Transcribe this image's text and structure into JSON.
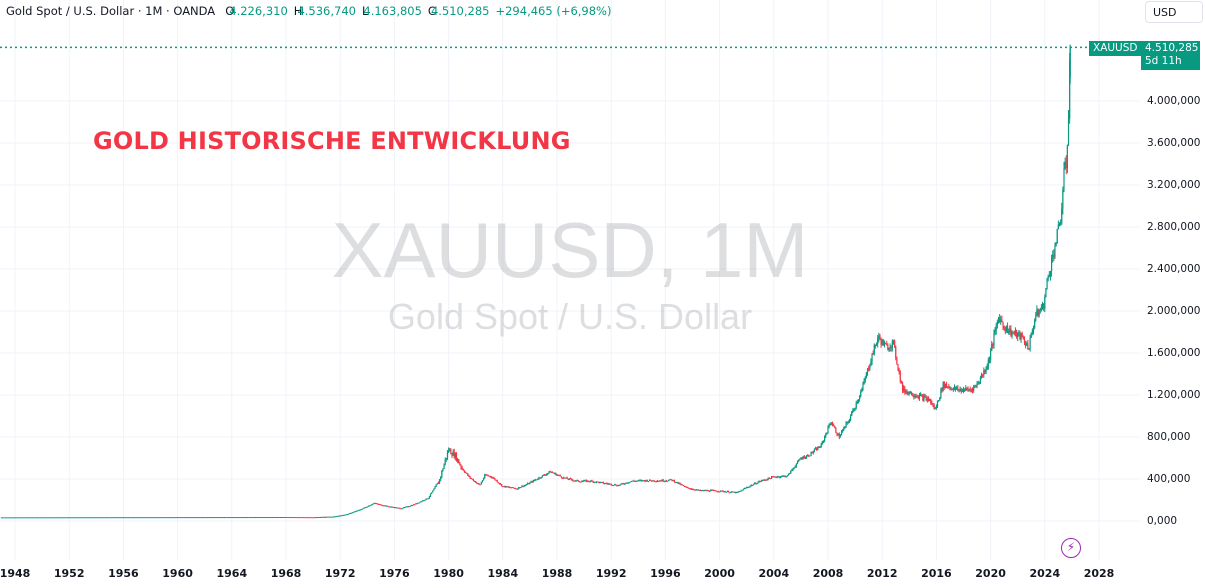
{
  "legend": {
    "symbol_name": "Gold Spot / U.S. Dollar · 1M · OANDA",
    "open_label": "O",
    "open": "4.226,310",
    "high_label": "H",
    "high": "4.536,740",
    "low_label": "L",
    "low": "4.163,805",
    "close_label": "C",
    "close": "4.510,285",
    "change": "+294,465 (+6,98%)"
  },
  "price_scale": {
    "currency": "USD",
    "symbol_tag": "XAUUSD",
    "last_price": "4.510,285",
    "countdown": "5d 11h"
  },
  "watermark": {
    "title": "XAUUSD, 1M",
    "subtitle": "Gold Spot / U.S. Dollar"
  },
  "annotation": {
    "text": "GOLD HISTORISCHE ENTWICKLUNG"
  },
  "icons": {
    "bolt": "lightning-bolt-icon"
  },
  "colors": {
    "up": "#089981",
    "down": "#f23645",
    "grid": "#f0f3fa",
    "annotation": "#f23645",
    "bolt": "#9c27b0"
  },
  "chart_data": {
    "type": "candlestick",
    "title": "XAUUSD, 1M — Gold Spot / U.S. Dollar",
    "annotation": "GOLD HISTORISCHE ENTWICKLUNG",
    "xlabel": "",
    "ylabel": "USD",
    "y_ticks": [
      "0,000",
      "400,000",
      "800,000",
      "1.200,000",
      "1.600,000",
      "2.000,000",
      "2.400,000",
      "2.800,000",
      "3.200,000",
      "3.600,000",
      "4.000,000"
    ],
    "y_tick_values": [
      0,
      400,
      800,
      1200,
      1600,
      2000,
      2400,
      2800,
      3200,
      3600,
      4000
    ],
    "x_ticks": [
      "1948",
      "1952",
      "1956",
      "1960",
      "1964",
      "1968",
      "1972",
      "1976",
      "1980",
      "1984",
      "1988",
      "1992",
      "1996",
      "2000",
      "2004",
      "2008",
      "2012",
      "2016",
      "2020",
      "2024",
      "2028"
    ],
    "ylim": [
      -80,
      4800
    ],
    "xlim": [
      1947,
      2033
    ],
    "grid": true,
    "last": {
      "open": 4226.31,
      "high": 4536.74,
      "low": 4163.805,
      "close": 4510.285,
      "change": 294.465,
      "change_pct": 6.98
    },
    "approx_series": {
      "x": [
        1947.0,
        1968.0,
        1970.0,
        1971.5,
        1972.5,
        1973.5,
        1974.5,
        1975.5,
        1976.5,
        1977.5,
        1978.5,
        1979.3,
        1979.8,
        1980.0,
        1980.5,
        1981.0,
        1981.5,
        1982.3,
        1982.7,
        1983.2,
        1984.0,
        1985.0,
        1985.8,
        1986.5,
        1987.5,
        1988.5,
        1989.5,
        1990.5,
        1991.5,
        1992.5,
        1993.5,
        1994.5,
        1995.5,
        1996.5,
        1997.5,
        1998.5,
        1999.5,
        2000.5,
        2001.3,
        2002.0,
        2003.0,
        2004.0,
        2005.0,
        2006.0,
        2006.5,
        2007.5,
        2008.2,
        2008.8,
        2009.5,
        2010.5,
        2011.3,
        2011.7,
        2012.3,
        2012.8,
        2013.5,
        2014.5,
        2015.5,
        2015.9,
        2016.5,
        2017.5,
        2018.5,
        2019.0,
        2019.8,
        2020.6,
        2021.0,
        2021.5,
        2022.3,
        2022.8,
        2023.3,
        2023.9,
        2024.2,
        2024.8,
        2025.2,
        2025.4,
        2025.6,
        2025.75,
        2025.85
      ],
      "close": [
        35,
        38,
        36,
        42,
        64,
        110,
        170,
        140,
        120,
        160,
        220,
        380,
        600,
        680,
        620,
        500,
        420,
        340,
        440,
        420,
        330,
        310,
        350,
        400,
        470,
        410,
        380,
        380,
        360,
        340,
        380,
        385,
        385,
        390,
        320,
        290,
        290,
        280,
        270,
        320,
        380,
        420,
        430,
        600,
        620,
        720,
        950,
        800,
        950,
        1250,
        1600,
        1750,
        1650,
        1700,
        1250,
        1200,
        1150,
        1060,
        1300,
        1250,
        1250,
        1300,
        1500,
        1950,
        1850,
        1800,
        1750,
        1650,
        1950,
        2050,
        2300,
        2650,
        2900,
        3300,
        3400,
        3900,
        4510
      ]
    }
  }
}
